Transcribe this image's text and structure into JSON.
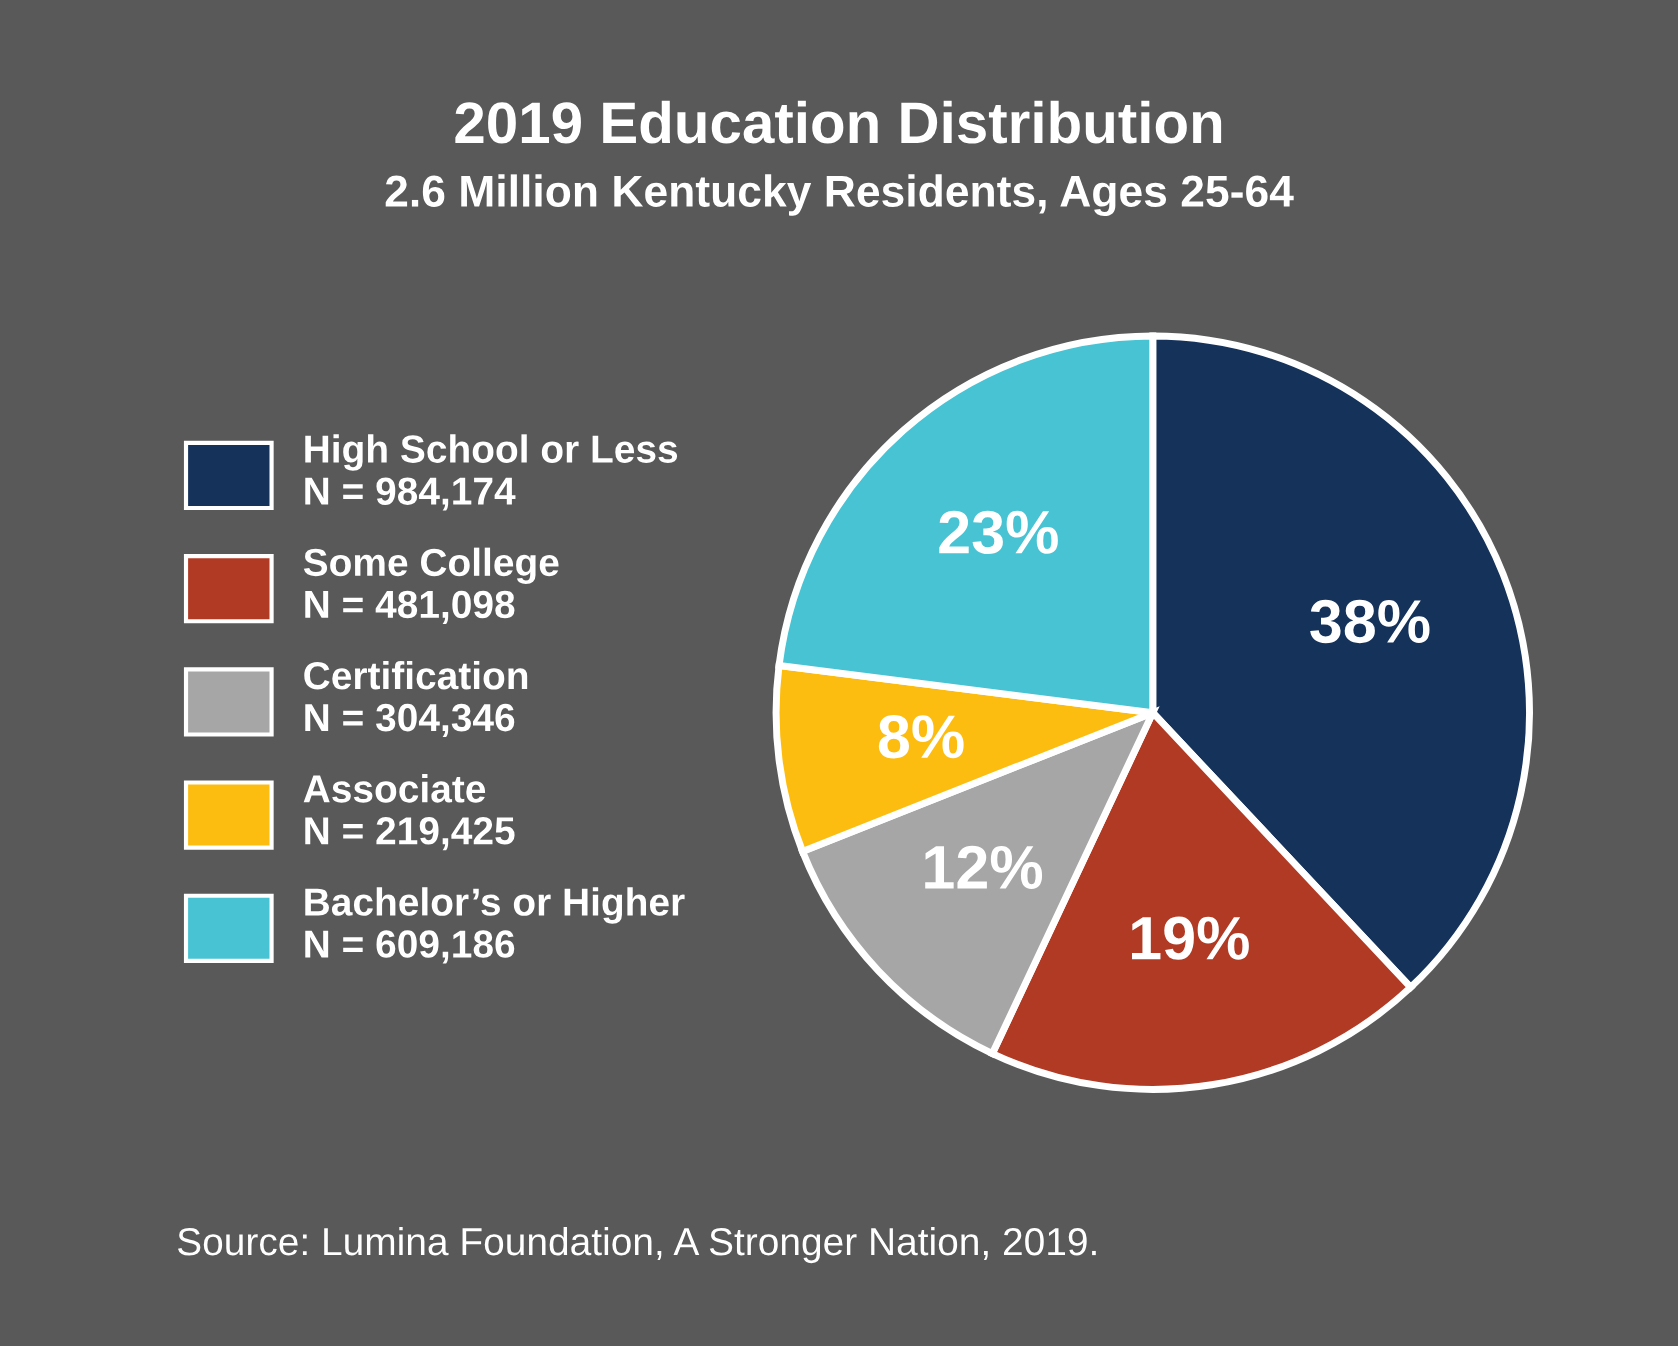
{
  "chart_data": {
    "type": "pie",
    "title": "2019 Education Distribution",
    "subtitle": "2.6 Million Kentucky Residents, Ages 25-64",
    "categories": [
      "High School or Less\nN = 984,174",
      "Some College\nN = 481,098",
      "Certification\nN = 304,346",
      "Associate\nN = 219,425",
      "Bachelor’s or Higher\nN = 609,186"
    ],
    "values": [
      38,
      19,
      12,
      8,
      23
    ],
    "value_labels": [
      "38%",
      "19%",
      "12%",
      "8%",
      "23%"
    ],
    "colors": [
      "#14325a",
      "#b03a24",
      "#a6a6a6",
      "#fdbd10",
      "#47c3d3"
    ],
    "legend": "left",
    "annotations": [
      "Source: Lumina Foundation, A Stronger Nation, 2019."
    ]
  }
}
